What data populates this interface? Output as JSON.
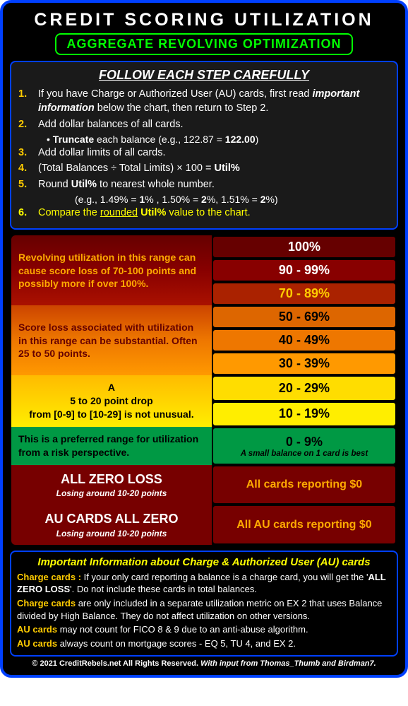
{
  "title": "CREDIT SCORING UTILIZATION",
  "subtitle": "AGGREGATE REVOLVING OPTIMIZATION",
  "steps_title": "FOLLOW EACH STEP CAREFULLY",
  "steps": {
    "s1": "If you have Charge or Authorized User (AU) cards, first read",
    "s1b": "important information",
    "s1c": " below the chart, then return to Step 2.",
    "s2": "Add dollar balances of all cards.",
    "s2sub_a": "• ",
    "s2sub_b": "Truncate",
    "s2sub_c": " each balance (e.g., 122.87 = ",
    "s2sub_d": "122.00",
    "s2sub_e": ")",
    "s3": "Add dollar limits of all cards.",
    "s4a": "(Total Balances ÷ Total Limits) × 100 = ",
    "s4b": "Util%",
    "s5a": "Round ",
    "s5b": "Util%",
    "s5c": " to nearest whole number.",
    "s5sub_a": "(e.g., 1.49% = ",
    "s5sub_b": "1",
    "s5sub_c": "% , 1.50% = ",
    "s5sub_d": "2",
    "s5sub_e": "%, 1.51% = ",
    "s5sub_f": "2",
    "s5sub_g": "%)",
    "s6a": "Compare the ",
    "s6b": "rounded",
    "s6c": " Util%",
    "s6d": " value to the chart."
  },
  "zones": {
    "z1_desc": "Revolving utilization in this range can cause score loss of 70-100 points and possibly more if over 100%.",
    "z1_b1": "100%",
    "z1_b2": "90 - 99%",
    "z1_b3": "70 - 89%",
    "z2_desc": "Score loss associated with utilization in this range can be substantial. Often 25 to 50 points.",
    "z2_b1": "50 - 69%",
    "z2_b2": "40 - 49%",
    "z2_b3": "30 - 39%",
    "z3_desc_a": "A ",
    "z3_desc_b": "5 to 20 point drop",
    "z3_desc_c": " from [0-9] to [10-29] is not unusual.",
    "z3_b1": "20 - 29%",
    "z3_b2": "10 - 19%",
    "z4_desc": "This is a preferred range for utilization from a risk perspective.",
    "z4_b": "0 - 9%",
    "z4_sub": "A small balance on 1 card is best",
    "z5a_t": "ALL ZERO LOSS",
    "z5a_s": "Losing around 10-20 points",
    "z5a_b": "All cards reporting $0",
    "z5b_t": "AU CARDS ALL ZERO",
    "z5b_s": "Losing around 10-20 points",
    "z5b_b": "All AU cards reporting $0"
  },
  "info": {
    "title": "Important Information about Charge & Authorized User (AU) cards",
    "l1a": "Charge cards :",
    "l1b": "  If your only card reporting a balance is a charge card, you will get the '",
    "l1c": "ALL ZERO LOSS",
    "l1d": "'. Do not include these cards in total balances.",
    "l2a": "Charge cards",
    "l2b": " are only included in a separate utilization metric on EX 2 that uses Balance divided by High Balance.  They do not affect utilization on other versions.",
    "l3a": "AU cards",
    "l3b": " may not count for FICO 8 & 9 due to an anti-abuse algorithm.",
    "l4a": "AU cards",
    "l4b": " always count on mortgage scores - EQ 5, TU 4, and EX 2."
  },
  "credit_a": "© 2021 CreditRebels.net  All Rights Reserved. ",
  "credit_b": "With input from Thomas_Thumb and Birdman7."
}
